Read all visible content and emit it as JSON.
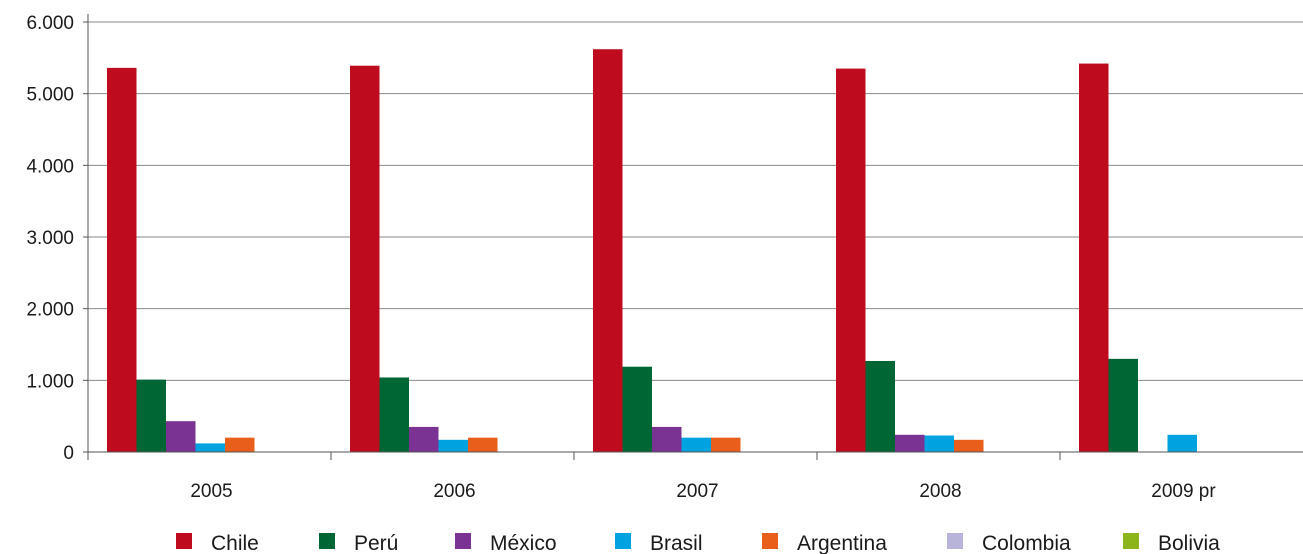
{
  "chart_data": {
    "type": "bar",
    "title": "",
    "xlabel": "",
    "ylabel": "",
    "ylim": [
      0,
      6000
    ],
    "y_ticks": [
      {
        "value": 0,
        "label": "0"
      },
      {
        "value": 1000,
        "label": "1.000"
      },
      {
        "value": 2000,
        "label": "2.000"
      },
      {
        "value": 3000,
        "label": "3.000"
      },
      {
        "value": 4000,
        "label": "4.000"
      },
      {
        "value": 5000,
        "label": "5.000"
      },
      {
        "value": 6000,
        "label": "6.000"
      }
    ],
    "grid": true,
    "legend_position": "bottom",
    "categories": [
      "2005",
      "2006",
      "2007",
      "2008",
      "2009 pr"
    ],
    "series": [
      {
        "name": "Chile",
        "color": "#be0b1e",
        "values": [
          5360,
          5390,
          5620,
          5350,
          5420
        ]
      },
      {
        "name": "Perú",
        "color": "#006633",
        "values": [
          1010,
          1040,
          1190,
          1270,
          1300
        ]
      },
      {
        "name": "México",
        "color": "#7b3393",
        "values": [
          430,
          350,
          350,
          240,
          0
        ]
      },
      {
        "name": "Brasil",
        "color": "#00a3e0",
        "values": [
          120,
          170,
          200,
          230,
          240
        ]
      },
      {
        "name": "Argentina",
        "color": "#e95e1a",
        "values": [
          200,
          200,
          200,
          170,
          0
        ]
      },
      {
        "name": "Colombia",
        "color": "#b8b3d9",
        "values": [
          0,
          0,
          0,
          0,
          0
        ]
      },
      {
        "name": "Bolivia",
        "color": "#8cb51c",
        "values": [
          0,
          0,
          0,
          0,
          0
        ]
      }
    ]
  }
}
